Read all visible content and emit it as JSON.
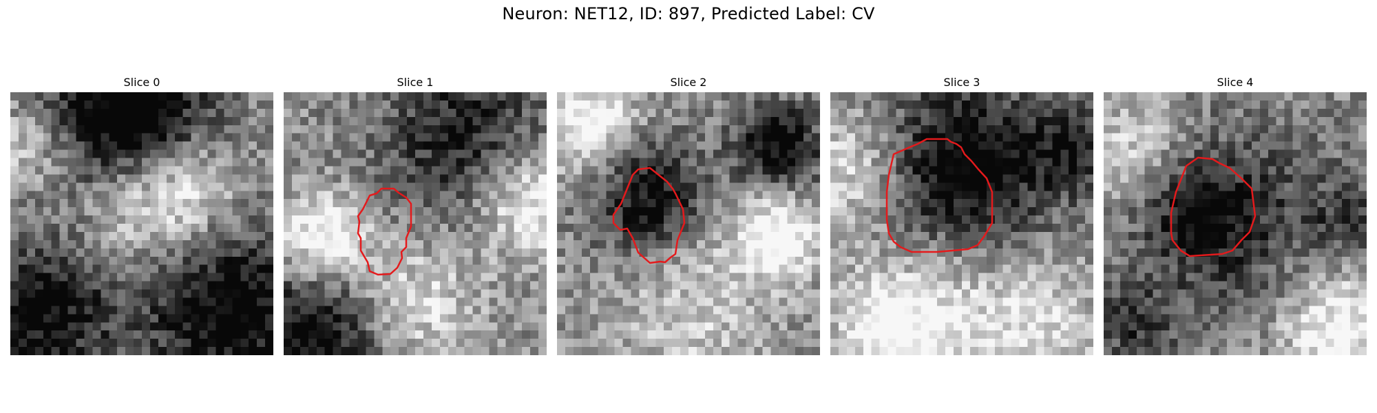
{
  "figure": {
    "title": "Neuron: NET12, ID: 897, Predicted Label: CV"
  },
  "contour_color": "#e41a1c",
  "panels": [
    {
      "title": "Slice 0",
      "has_contour": false
    },
    {
      "title": "Slice 1",
      "has_contour": true
    },
    {
      "title": "Slice 2",
      "has_contour": true
    },
    {
      "title": "Slice 3",
      "has_contour": true
    },
    {
      "title": "Slice 4",
      "has_contour": true
    }
  ]
}
